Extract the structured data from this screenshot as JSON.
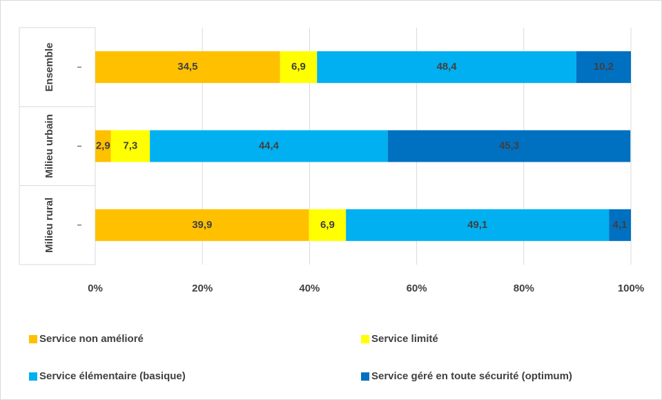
{
  "chart_data": {
    "type": "stacked_bar_horizontal",
    "categories": [
      "Ensemble",
      "Milieu urbain",
      "Milieu rural"
    ],
    "series": [
      {
        "name": "Service non amélioré",
        "color": "#ffc000",
        "values": [
          34.5,
          2.9,
          39.9
        ],
        "value_labels": [
          "34,5",
          "2,9",
          "39,9"
        ]
      },
      {
        "name": "Service limité",
        "color": "#ffff00",
        "values": [
          6.9,
          7.3,
          6.9
        ],
        "value_labels": [
          "6,9",
          "7,3",
          "6,9"
        ]
      },
      {
        "name": "Service élémentaire (basique)",
        "color": "#00b0f0",
        "values": [
          48.4,
          44.4,
          49.1
        ],
        "value_labels": [
          "48,4",
          "44,4",
          "49,1"
        ]
      },
      {
        "name": "Service géré en toute sécurité (optimum)",
        "color": "#0070c0",
        "values": [
          10.2,
          45.3,
          4.1
        ],
        "value_labels": [
          "10,2",
          "45,3",
          "4,1"
        ]
      }
    ],
    "xlim": [
      0,
      100
    ],
    "xticks": [
      {
        "value": 0,
        "label": "0%"
      },
      {
        "value": 20,
        "label": "20%"
      },
      {
        "value": 40,
        "label": "40%"
      },
      {
        "value": 60,
        "label": "60%"
      },
      {
        "value": 80,
        "label": "80%"
      },
      {
        "value": 100,
        "label": "100%"
      }
    ],
    "grid": true,
    "legend": "bottom"
  }
}
